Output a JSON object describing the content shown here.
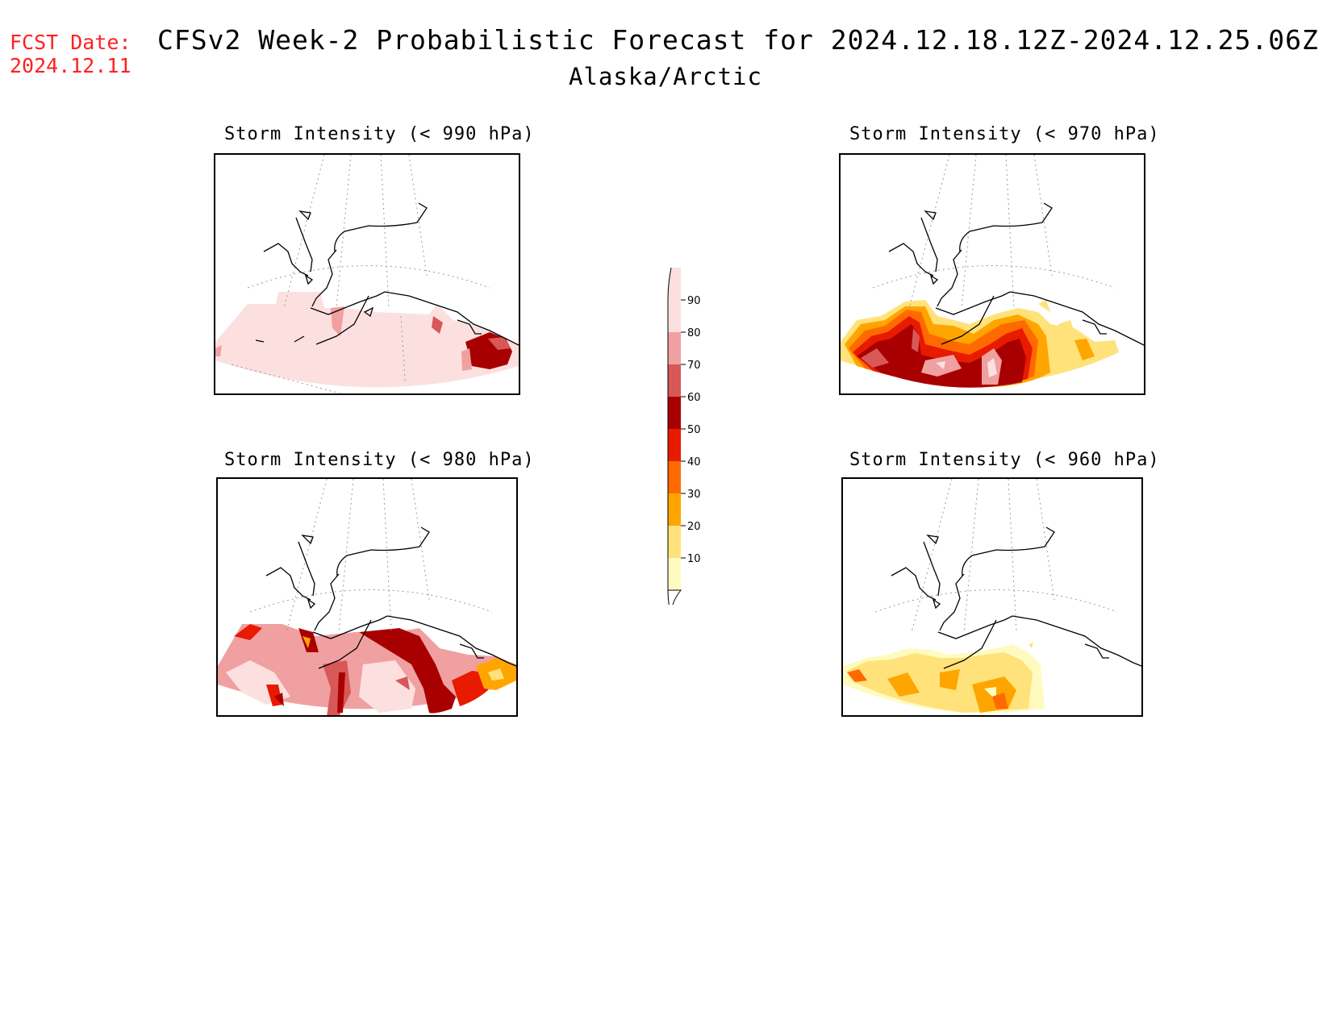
{
  "header": {
    "fcst_label": "FCST Date:",
    "fcst_date": "2024.12.11",
    "title": "CFSv2 Week-2 Probabilistic Forecast for 2024.12.18.12Z-2024.12.25.06Z",
    "subtitle": "Alaska/Arctic"
  },
  "panels": [
    {
      "id": "p990",
      "title": "Storm Intensity (< 990 hPa)"
    },
    {
      "id": "p970",
      "title": "Storm Intensity (< 970 hPa)"
    },
    {
      "id": "p980",
      "title": "Storm Intensity (< 980 hPa)"
    },
    {
      "id": "p960",
      "title": "Storm Intensity (< 960 hPa)"
    }
  ],
  "colorbar": {
    "levels": [
      "10",
      "20",
      "30",
      "40",
      "50",
      "60",
      "70",
      "80",
      "90"
    ],
    "colors": {
      "c10": "#fffbc0",
      "c20": "#ffe27a",
      "c30": "#ffa500",
      "c40": "#ff6a00",
      "c50": "#e81a00",
      "c60": "#a80000",
      "c70": "#d85858",
      "c80": "#f0a0a0",
      "c90": "#fce0e0"
    }
  }
}
